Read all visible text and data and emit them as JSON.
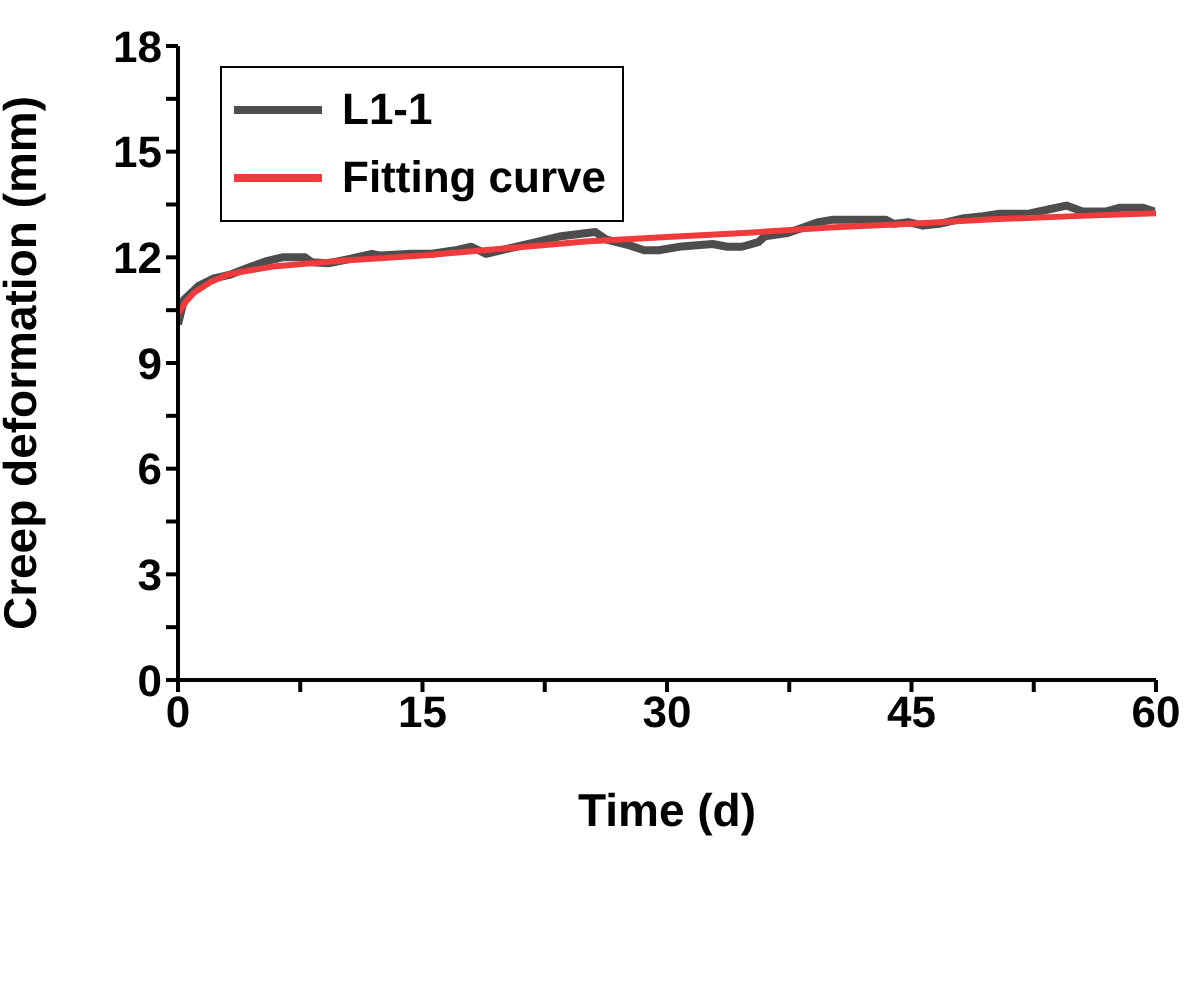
{
  "chart_data": {
    "type": "line",
    "xlabel": "Time (d)",
    "ylabel": "Creep deformation (mm)",
    "xlim": [
      0,
      60
    ],
    "ylim": [
      0,
      18
    ],
    "xticks": [
      0,
      {
        "value": 7.5,
        "label": null
      },
      15,
      {
        "value": 22.5,
        "label": null
      },
      30,
      {
        "value": 37.5,
        "label": null
      },
      45,
      {
        "value": 52.5,
        "label": null
      },
      60
    ],
    "yticks": [
      0,
      {
        "value": 1.5,
        "label": null
      },
      3,
      {
        "value": 4.5,
        "label": null
      },
      6,
      {
        "value": 7.5,
        "label": null
      },
      9,
      {
        "value": 10.5,
        "label": null
      },
      12,
      {
        "value": 13.5,
        "label": null
      },
      15,
      {
        "value": 16.5,
        "label": null
      },
      18
    ],
    "legend": "top left",
    "grid": false,
    "marker": "none",
    "line_style": "solid",
    "series": [
      {
        "name": "L1-1",
        "color": "#4d4d4d",
        "x": [
          0,
          0.37,
          1.3,
          2.2,
          3.15,
          4.5,
          5.5,
          6.4,
          7.8,
          8.2,
          9.2,
          10.6,
          11.9,
          12.4,
          14.3,
          15.6,
          17.0,
          18.0,
          18.9,
          19.8,
          21.7,
          23.5,
          25.6,
          26.3,
          27.7,
          28.6,
          29.5,
          30.9,
          32.8,
          33.7,
          34.6,
          35.6,
          36.0,
          37.4,
          39.3,
          40.2,
          43.4,
          43.9,
          44.8,
          45.7,
          46.7,
          48.1,
          49.4,
          50.4,
          52.2,
          53.6,
          54.5,
          55.5,
          56.9,
          57.8,
          59.2,
          59.9
        ],
        "values": [
          10.1,
          10.8,
          11.2,
          11.4,
          11.5,
          11.74,
          11.9,
          12.0,
          12.0,
          11.86,
          11.83,
          11.96,
          12.1,
          12.05,
          12.1,
          12.1,
          12.2,
          12.3,
          12.1,
          12.2,
          12.4,
          12.6,
          12.72,
          12.5,
          12.34,
          12.2,
          12.2,
          12.31,
          12.38,
          12.3,
          12.3,
          12.43,
          12.6,
          12.69,
          13.0,
          13.07,
          13.07,
          12.95,
          13.0,
          12.9,
          12.95,
          13.1,
          13.17,
          13.24,
          13.24,
          13.38,
          13.47,
          13.3,
          13.3,
          13.41,
          13.41,
          13.3
        ]
      },
      {
        "name": "Fitting curve",
        "color": "#ef3b3b",
        "x": [
          0,
          0.5,
          1,
          2,
          3,
          4,
          6,
          10,
          15,
          20,
          25,
          30,
          35,
          40,
          45,
          50,
          55,
          60
        ],
        "values": [
          10.4,
          10.75,
          11.0,
          11.3,
          11.5,
          11.6,
          11.75,
          11.9,
          12.05,
          12.25,
          12.45,
          12.58,
          12.7,
          12.85,
          12.95,
          13.08,
          13.17,
          13.25
        ]
      }
    ]
  }
}
